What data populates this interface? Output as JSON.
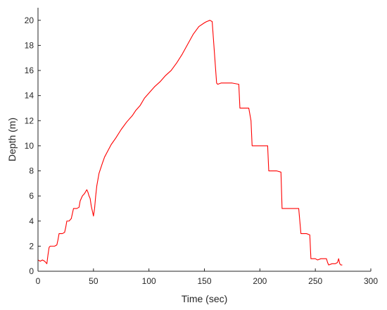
{
  "chart_data": {
    "type": "line",
    "title": "",
    "xlabel": "Time (sec)",
    "ylabel": "Depth (m)",
    "xlim": [
      0,
      300
    ],
    "ylim": [
      0,
      21
    ],
    "xticks": [
      0,
      50,
      100,
      150,
      200,
      250,
      300
    ],
    "xtick_labels": [
      "0",
      "50",
      "100",
      "150",
      "200",
      "250",
      "300"
    ],
    "yticks": [
      0,
      2,
      4,
      6,
      8,
      10,
      12,
      14,
      16,
      18,
      20
    ],
    "ytick_labels": [
      "0",
      "2",
      "4",
      "6",
      "8",
      "10",
      "12",
      "14",
      "16",
      "18",
      "20"
    ],
    "grid": false,
    "legend": "none",
    "series": [
      {
        "color": "#ff0000",
        "x": [
          0,
          2,
          4,
          6,
          8,
          9,
          10,
          11,
          15,
          17,
          18,
          19,
          22,
          24,
          25,
          26,
          28,
          30,
          31,
          32,
          35,
          37,
          38,
          40,
          42,
          44,
          45,
          46,
          47,
          48,
          49,
          50,
          51,
          52,
          53,
          55,
          58,
          60,
          63,
          66,
          70,
          75,
          80,
          85,
          88,
          92,
          96,
          100,
          105,
          110,
          115,
          120,
          125,
          130,
          135,
          140,
          145,
          150,
          152,
          155,
          157,
          161,
          162,
          165,
          175,
          181,
          182,
          185,
          190,
          192,
          193,
          200,
          205,
          207,
          208,
          215,
          219,
          220,
          224,
          230,
          235,
          237,
          238,
          242,
          245,
          246,
          248,
          250,
          252,
          255,
          258,
          260,
          261,
          262,
          265,
          268,
          270,
          271,
          272,
          273,
          274
        ],
        "y": [
          0.9,
          0.8,
          0.9,
          0.8,
          0.6,
          1.3,
          1.9,
          2.0,
          2.0,
          2.1,
          2.5,
          3.0,
          3.0,
          3.1,
          3.5,
          4.0,
          4.0,
          4.2,
          4.6,
          5.0,
          5.0,
          5.1,
          5.6,
          6.0,
          6.2,
          6.5,
          6.3,
          6.0,
          5.8,
          5.2,
          4.8,
          4.4,
          5.0,
          6.0,
          6.8,
          7.8,
          8.6,
          9.1,
          9.6,
          10.1,
          10.6,
          11.3,
          11.9,
          12.4,
          12.8,
          13.2,
          13.8,
          14.2,
          14.7,
          15.1,
          15.6,
          16.0,
          16.6,
          17.3,
          18.1,
          18.9,
          19.5,
          19.8,
          19.9,
          20.0,
          19.9,
          15.0,
          14.9,
          15.0,
          15.0,
          14.9,
          13.0,
          13.0,
          13.0,
          12.0,
          10.0,
          10.0,
          10.0,
          10.0,
          8.0,
          8.0,
          7.9,
          5.0,
          5.0,
          5.0,
          5.0,
          3.0,
          3.0,
          3.0,
          2.9,
          1.0,
          1.0,
          1.0,
          0.9,
          1.0,
          1.0,
          1.0,
          0.7,
          0.5,
          0.6,
          0.6,
          0.7,
          1.0,
          0.6,
          0.5,
          0.5
        ]
      }
    ]
  }
}
